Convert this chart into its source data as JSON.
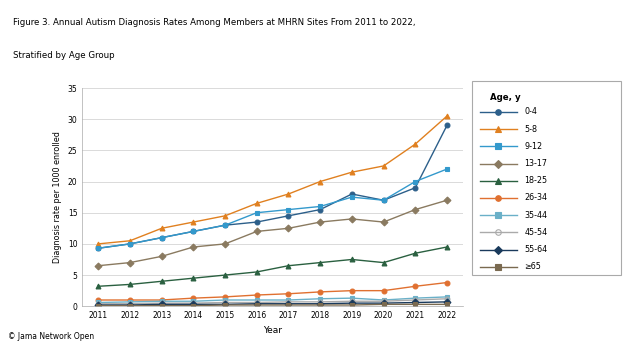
{
  "title_line1": "Figure 3. Annual Autism Diagnosis Rates Among Members at MHRN Sites From 2011 to 2022,",
  "title_line2": "Stratified by Age Group",
  "xlabel": "Year",
  "ylabel": "Diagnosis rate per 1000 enrolled",
  "years": [
    2011,
    2012,
    2013,
    2014,
    2015,
    2016,
    2017,
    2018,
    2019,
    2020,
    2021,
    2022
  ],
  "series": {
    "0-4": [
      9.3,
      10.0,
      11.0,
      12.0,
      13.0,
      13.5,
      14.5,
      15.5,
      18.0,
      17.0,
      19.0,
      29.0
    ],
    "5-8": [
      10.0,
      10.5,
      12.5,
      13.5,
      14.5,
      16.5,
      18.0,
      20.0,
      21.5,
      22.5,
      26.0,
      30.5
    ],
    "9-12": [
      9.3,
      10.0,
      11.0,
      12.0,
      13.0,
      15.0,
      15.5,
      16.0,
      17.5,
      17.0,
      20.0,
      22.0
    ],
    "13-17": [
      6.5,
      7.0,
      8.0,
      9.5,
      10.0,
      12.0,
      12.5,
      13.5,
      14.0,
      13.5,
      15.5,
      17.0
    ],
    "18-25": [
      3.2,
      3.5,
      4.0,
      4.5,
      5.0,
      5.5,
      6.5,
      7.0,
      7.5,
      7.0,
      8.5,
      9.5
    ],
    "26-34": [
      1.0,
      1.0,
      1.0,
      1.3,
      1.5,
      1.8,
      2.0,
      2.3,
      2.5,
      2.5,
      3.2,
      3.8
    ],
    "35-44": [
      0.6,
      0.7,
      0.8,
      0.8,
      1.0,
      1.0,
      1.0,
      1.2,
      1.3,
      1.0,
      1.3,
      1.5
    ],
    "45-54": [
      0.4,
      0.4,
      0.5,
      0.5,
      0.6,
      0.6,
      0.7,
      0.7,
      0.8,
      0.8,
      1.0,
      1.2
    ],
    "55-64": [
      0.2,
      0.2,
      0.3,
      0.3,
      0.3,
      0.4,
      0.4,
      0.4,
      0.5,
      0.5,
      0.6,
      0.7
    ],
    "≥65": [
      0.1,
      0.1,
      0.1,
      0.1,
      0.2,
      0.2,
      0.2,
      0.2,
      0.2,
      0.3,
      0.3,
      0.3
    ]
  },
  "colors": {
    "0-4": "#2c5f8a",
    "5-8": "#e08020",
    "9-12": "#3399cc",
    "13-17": "#8a7a60",
    "18-25": "#2a6040",
    "26-34": "#e07030",
    "35-44": "#6ab0c8",
    "45-54": "#aaaaaa",
    "55-64": "#1a3a5c",
    "≥65": "#7a6a50"
  },
  "markers": {
    "0-4": "o",
    "5-8": "^",
    "9-12": "s",
    "13-17": "D",
    "18-25": "^",
    "26-34": "o",
    "35-44": "s",
    "45-54": "o",
    "55-64": "D",
    "≥65": "s"
  },
  "markerfacecolors": {
    "0-4": "#2c5f8a",
    "5-8": "#e08020",
    "9-12": "#3399cc",
    "13-17": "#8a7a60",
    "18-25": "#2a6040",
    "26-34": "#e07030",
    "35-44": "#6ab0c8",
    "45-54": "none",
    "55-64": "#1a3a5c",
    "≥65": "#7a6a50"
  },
  "ylim": [
    0,
    35
  ],
  "yticks": [
    0,
    5,
    10,
    15,
    20,
    25,
    30,
    35
  ],
  "legend_title": "Age, y",
  "background_color": "#ffffff",
  "top_bar_color": "#8b1a2e",
  "footer_text": "© Jama Network Open"
}
